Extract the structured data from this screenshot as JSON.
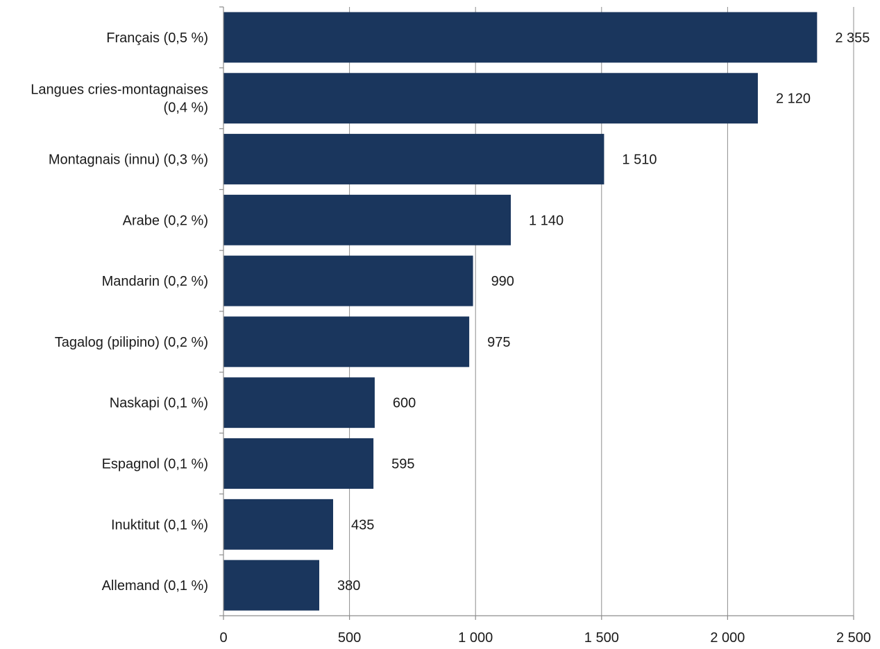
{
  "chart_data": {
    "type": "bar",
    "orientation": "horizontal",
    "categories": [
      "Français (0,5 %)",
      "Langues cries-montagnaises (0,4 %)",
      "Montagnais (innu) (0,3 %)",
      "Arabe (0,2 %)",
      "Mandarin (0,2 %)",
      "Tagalog (pilipino) (0,2 %)",
      "Naskapi (0,1 %)",
      "Espagnol (0,1 %)",
      "Inuktitut (0,1 %)",
      "Allemand (0,1 %)"
    ],
    "category_lines": [
      [
        "Français (0,5 %)"
      ],
      [
        "Langues cries-montagnaises",
        "(0,4 %)"
      ],
      [
        "Montagnais (innu) (0,3 %)"
      ],
      [
        "Arabe (0,2 %)"
      ],
      [
        "Mandarin (0,2 %)"
      ],
      [
        "Tagalog (pilipino) (0,2 %)"
      ],
      [
        "Naskapi (0,1 %)"
      ],
      [
        "Espagnol (0,1 %)"
      ],
      [
        "Inuktitut (0,1 %)"
      ],
      [
        "Allemand (0,1 %)"
      ]
    ],
    "values": [
      2355,
      2120,
      1510,
      1140,
      990,
      975,
      600,
      595,
      435,
      380
    ],
    "value_labels": [
      "2 355",
      "2 120",
      "1 510",
      "1 140",
      "990",
      "975",
      "600",
      "595",
      "435",
      "380"
    ],
    "xlim": [
      0,
      2500
    ],
    "x_ticks": [
      0,
      500,
      1000,
      1500,
      2000,
      2500
    ],
    "x_tick_labels": [
      "0",
      "500",
      "1 000",
      "1 500",
      "2 000",
      "2 500"
    ],
    "grid": true,
    "bar_color": "#1a365d",
    "grid_color": "#8c8c8c",
    "title": "",
    "xlabel": "",
    "ylabel": ""
  }
}
